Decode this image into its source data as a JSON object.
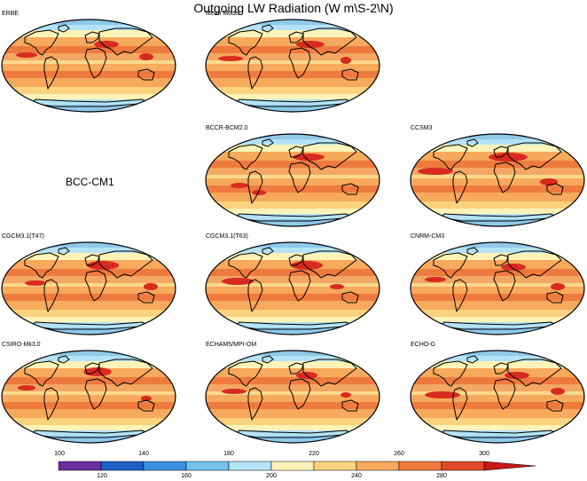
{
  "title": "Outgoing LW Radiation (W m\\S-2\\N)",
  "panels": [
    {
      "label": "ERBE",
      "model": "ERBE",
      "variant": 0
    },
    {
      "label": "Mean Model",
      "model": "Mean Model",
      "variant": 1
    },
    {
      "label": "BCCR-BCM2.0",
      "model": "BCCR-BCM2.0",
      "variant": 2
    },
    {
      "label": "CCSM3",
      "model": "CCSM3",
      "variant": 3
    },
    {
      "label": "CGCM3.1(T47)",
      "model": "CGCM3.1(T47)",
      "variant": 4
    },
    {
      "label": "CGCM3.1(T63)",
      "model": "CGCM3.1(T63)",
      "variant": 5
    },
    {
      "label": "CNRM-CM3",
      "model": "CNRM-CM3",
      "variant": 6
    },
    {
      "label": "CSIRO-Mk3.0",
      "model": "CSIRO-Mk3.0",
      "variant": 7
    },
    {
      "label": "ECHAM5/MPI-OM",
      "model": "ECHAM5/MPI-OM",
      "variant": 8
    },
    {
      "label": "ECHO-G",
      "model": "ECHO-G",
      "variant": 9
    }
  ],
  "missing_panel_label": "BCC-CM1",
  "colorbar": {
    "top_labels": [
      "100",
      "140",
      "180",
      "220",
      "260",
      "300"
    ],
    "bottom_labels": [
      "120",
      "160",
      "200",
      "240",
      "280"
    ],
    "colors": [
      "#6b2f9e",
      "#1f5fc4",
      "#3a8fe0",
      "#74c1ee",
      "#b4e3f5",
      "#fff3b8",
      "#fbd27e",
      "#f7a95c",
      "#ef7a3d",
      "#e04a2a",
      "#c81818"
    ]
  },
  "colors": {
    "land_outline": "#000000",
    "pole_blue": "#8ec9ea",
    "mid_orange": "#f4a763",
    "tropic_yellow": "#fbd98c",
    "hot_red": "#d92a20"
  }
}
